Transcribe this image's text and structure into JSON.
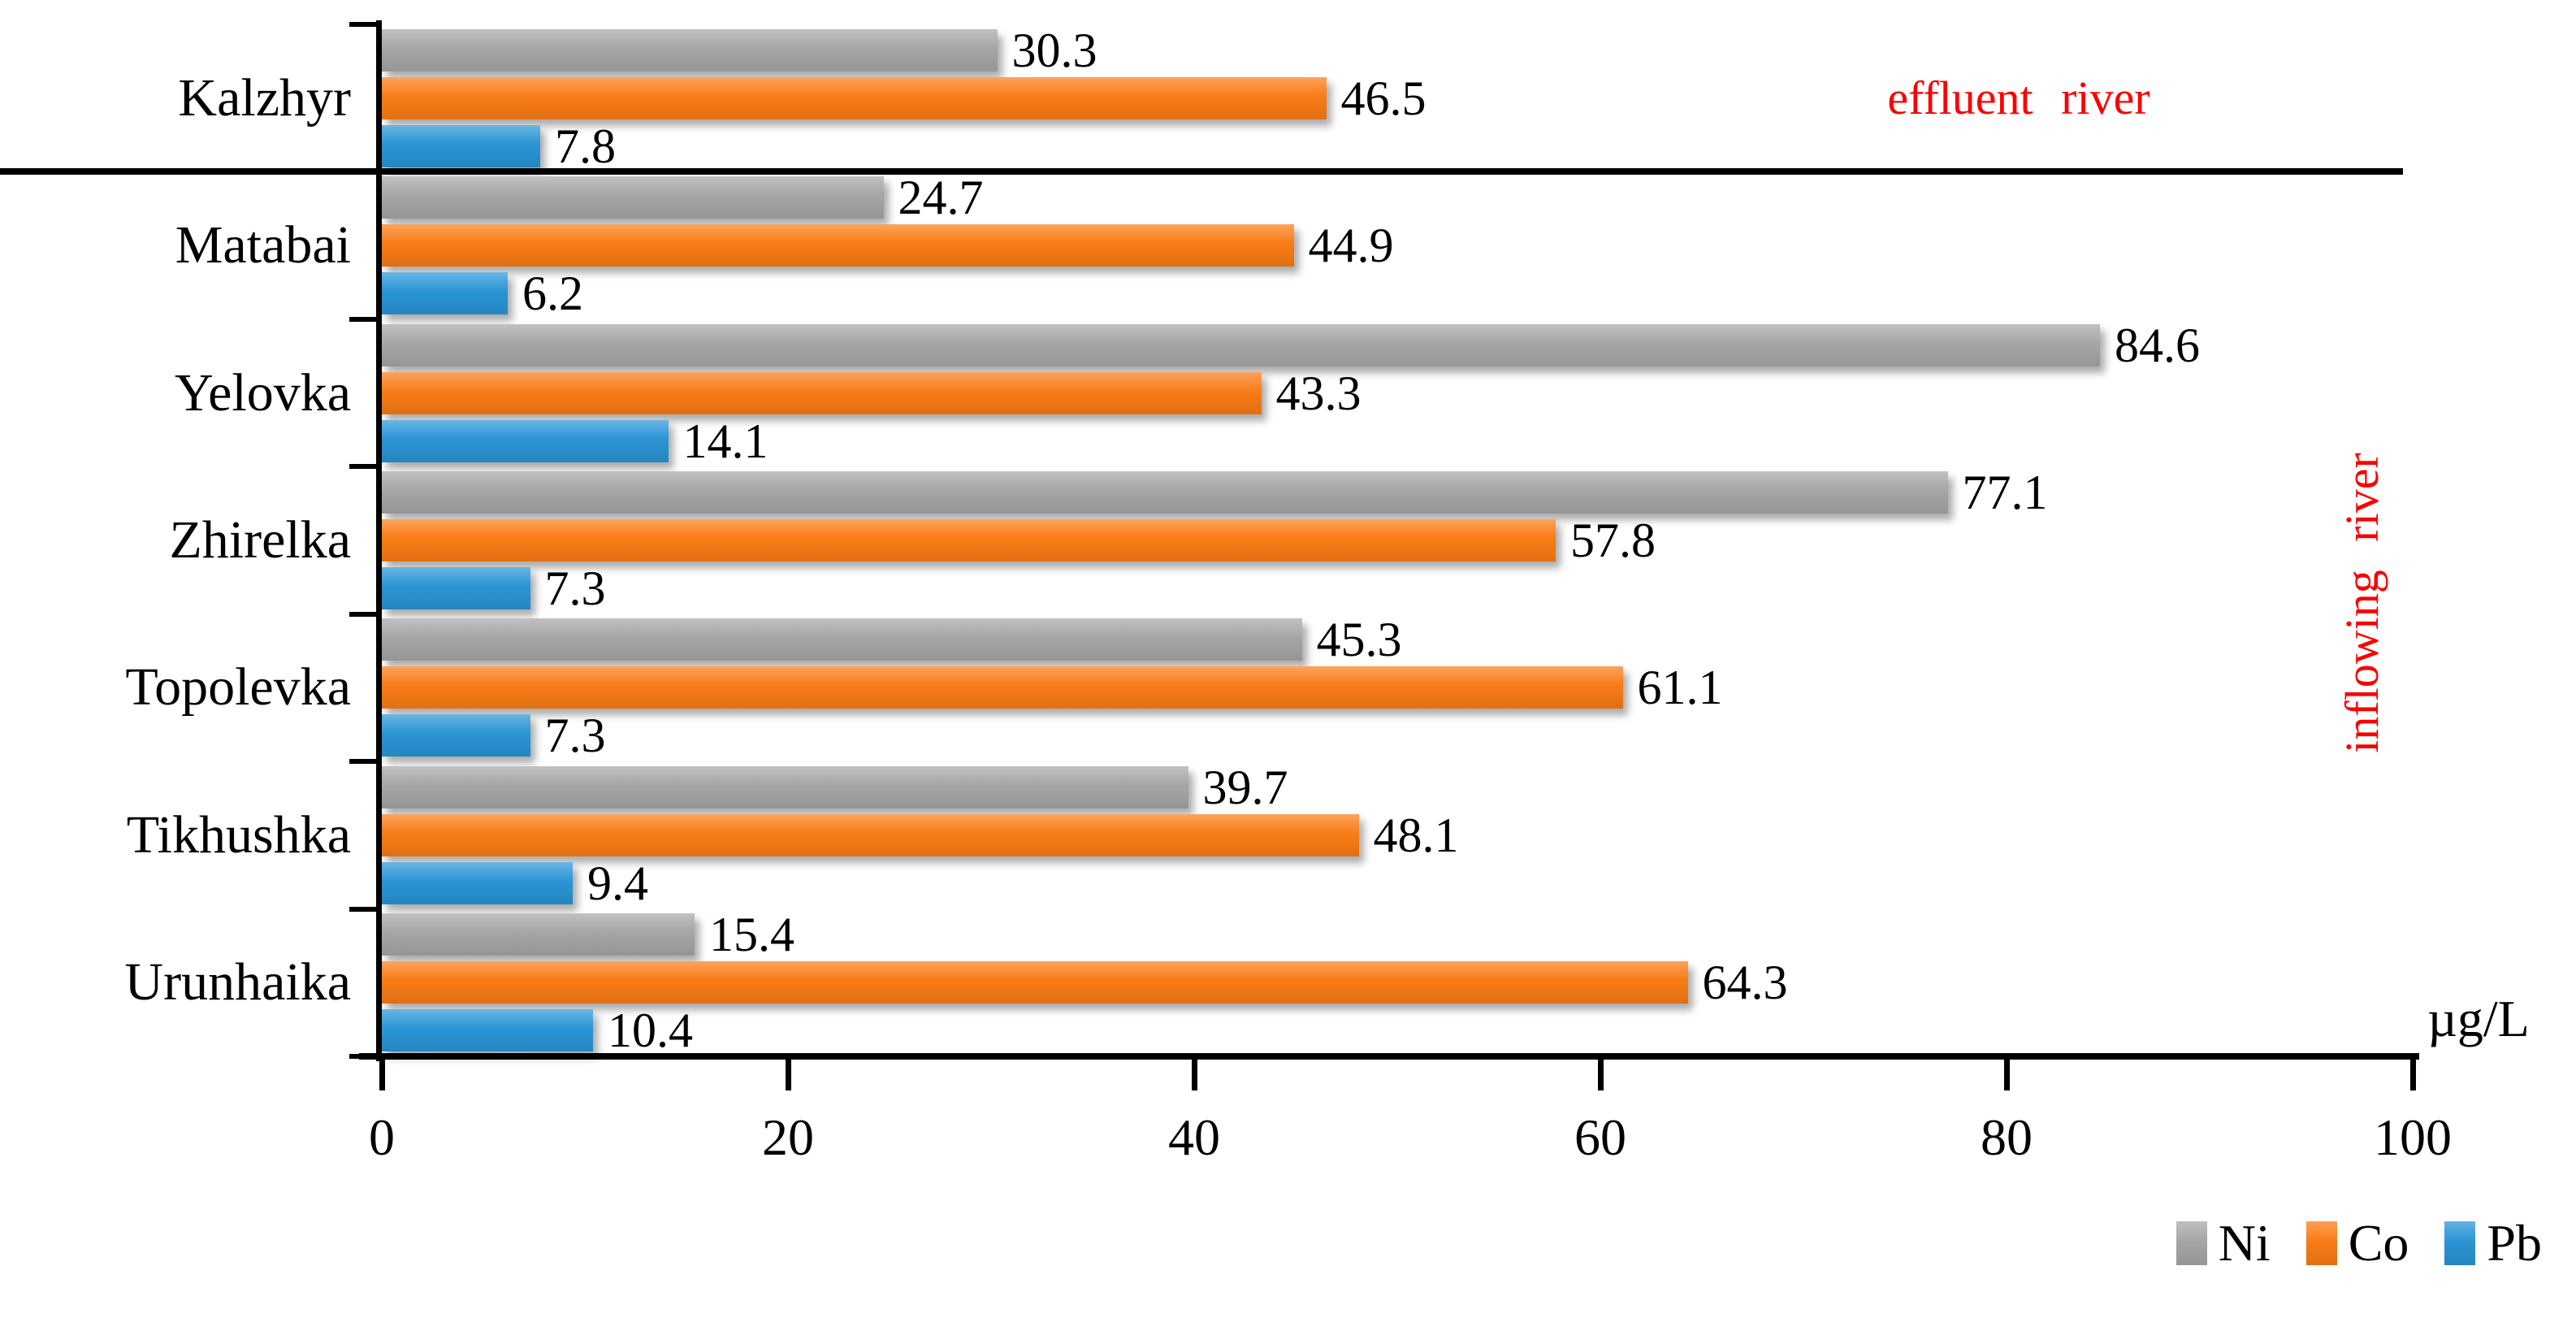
{
  "chart_data": {
    "type": "bar",
    "orientation": "horizontal",
    "title": "",
    "categories": [
      "Kalzhyr",
      "Matabai",
      "Yelovka",
      "Zhirelka",
      "Topolevka",
      "Tikhushka",
      "Urunhaika"
    ],
    "series": [
      {
        "name": "Ni",
        "color": "#a6a6a6",
        "values": [
          30.3,
          24.7,
          84.6,
          77.1,
          45.3,
          39.7,
          15.4
        ]
      },
      {
        "name": "Co",
        "color": "#f97c16",
        "values": [
          46.5,
          44.9,
          43.3,
          57.8,
          61.1,
          48.1,
          64.3
        ]
      },
      {
        "name": "Pb",
        "color": "#2a95d5",
        "values": [
          7.8,
          6.2,
          14.1,
          7.3,
          7.3,
          9.4,
          10.4
        ]
      }
    ],
    "value_labels_decimals": 1,
    "xlabel": "µg/L",
    "x_ticks": [
      "0",
      "20",
      "40",
      "60",
      "80",
      "100"
    ],
    "xlim": [
      0,
      100
    ],
    "grid": false,
    "legend_position": "bottom-right",
    "legend_labels": [
      "Ni",
      "Co",
      "Pb"
    ],
    "annotations": [
      {
        "text": "effluent river",
        "color": "#fc0000",
        "rotation": 0
      },
      {
        "text": "inflowing river",
        "color": "#fc0000",
        "rotation": -90
      }
    ],
    "separator_after_category": "Kalzhyr",
    "axis_color": "#000000"
  }
}
